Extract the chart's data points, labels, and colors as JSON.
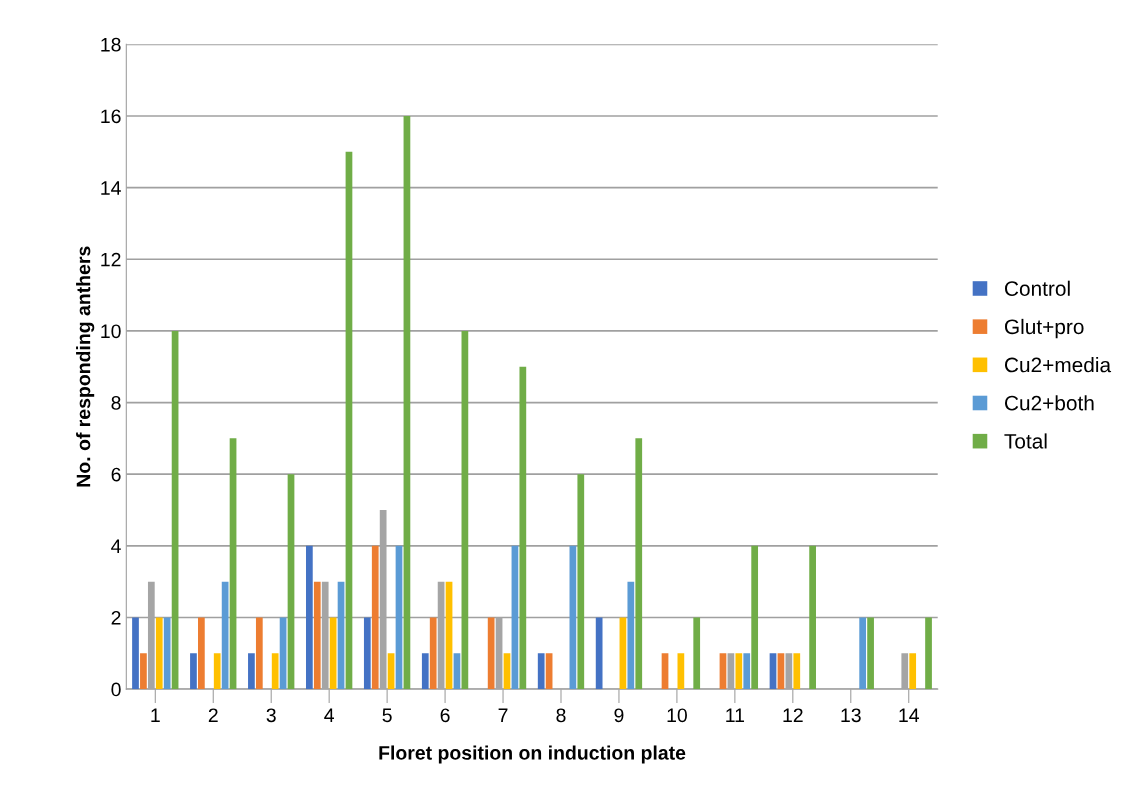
{
  "chart_data": {
    "type": "bar",
    "xlabel": "Floret position on induction plate",
    "ylabel": "No. of responding anthers",
    "categories": [
      "1",
      "2",
      "3",
      "4",
      "5",
      "6",
      "7",
      "8",
      "9",
      "10",
      "11",
      "12",
      "13",
      "14"
    ],
    "series": [
      {
        "name": "Control",
        "color": "#4472c4",
        "values": [
          2,
          1,
          1,
          4,
          2,
          1,
          0,
          1,
          2,
          0,
          0,
          1,
          0,
          0
        ]
      },
      {
        "name": "Glut+pro",
        "color": "#ed7d31",
        "values": [
          1,
          2,
          2,
          3,
          4,
          2,
          2,
          1,
          0,
          1,
          1,
          1,
          0,
          0
        ]
      },
      {
        "color": "#a5a5a5",
        "values": [
          3,
          0,
          0,
          3,
          5,
          3,
          2,
          0,
          0,
          0,
          1,
          1,
          0,
          1
        ]
      },
      {
        "name": "Cu2+media",
        "color": "#ffc000",
        "values": [
          2,
          1,
          1,
          2,
          1,
          3,
          1,
          0,
          2,
          1,
          1,
          1,
          0,
          1
        ]
      },
      {
        "name": "Cu2+both",
        "color": "#5b9bd5",
        "values": [
          2,
          3,
          2,
          3,
          4,
          1,
          4,
          4,
          3,
          0,
          1,
          0,
          2,
          0
        ]
      },
      {
        "name": "Total",
        "color": "#70ad47",
        "values": [
          10,
          7,
          6,
          15,
          16,
          10,
          9,
          6,
          7,
          2,
          4,
          4,
          2,
          2
        ]
      }
    ],
    "ylim": [
      0,
      18
    ],
    "yticks": [
      0,
      2,
      4,
      6,
      8,
      10,
      12,
      14,
      16,
      18
    ],
    "grid": "y",
    "legend": "right"
  }
}
